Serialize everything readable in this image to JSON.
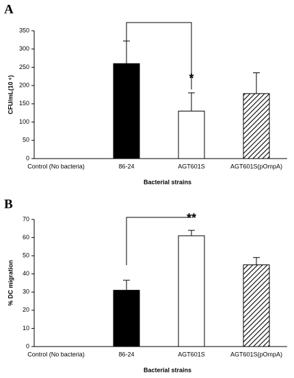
{
  "chart_data": [
    {
      "type": "bar",
      "panel_label": "A",
      "y_label": "CFU/mL(10 ⁶)",
      "x_label": "Bacterial strains",
      "categories": [
        "Control (No bacteria)",
        "86-24",
        "AGT601S",
        "AGT601S(pOmpA)"
      ],
      "values": [
        0,
        260,
        130,
        178
      ],
      "errors": [
        0,
        62,
        50,
        57
      ],
      "colors": [
        "#000000",
        "#000000",
        "#ffffff",
        "#ffffff"
      ],
      "hatch": [
        false,
        false,
        false,
        true
      ],
      "ylim": [
        0,
        350
      ],
      "yticks": [
        0,
        50,
        100,
        150,
        200,
        250,
        300,
        350
      ],
      "annotation": "*"
    },
    {
      "type": "bar",
      "panel_label": "B",
      "y_label": "% DC migration",
      "x_label": "Bacterial strains",
      "categories": [
        "Control (No bacteria)",
        "86-24",
        "AGT601S",
        "AGT601S(pOmpA)"
      ],
      "values": [
        0,
        31,
        61,
        45
      ],
      "errors": [
        0,
        5.5,
        3,
        4
      ],
      "colors": [
        "#000000",
        "#000000",
        "#ffffff",
        "#ffffff"
      ],
      "hatch": [
        false,
        false,
        false,
        true
      ],
      "ylim": [
        0,
        70
      ],
      "yticks": [
        0,
        10,
        20,
        30,
        40,
        50,
        60,
        70
      ],
      "annotation": "**"
    }
  ]
}
